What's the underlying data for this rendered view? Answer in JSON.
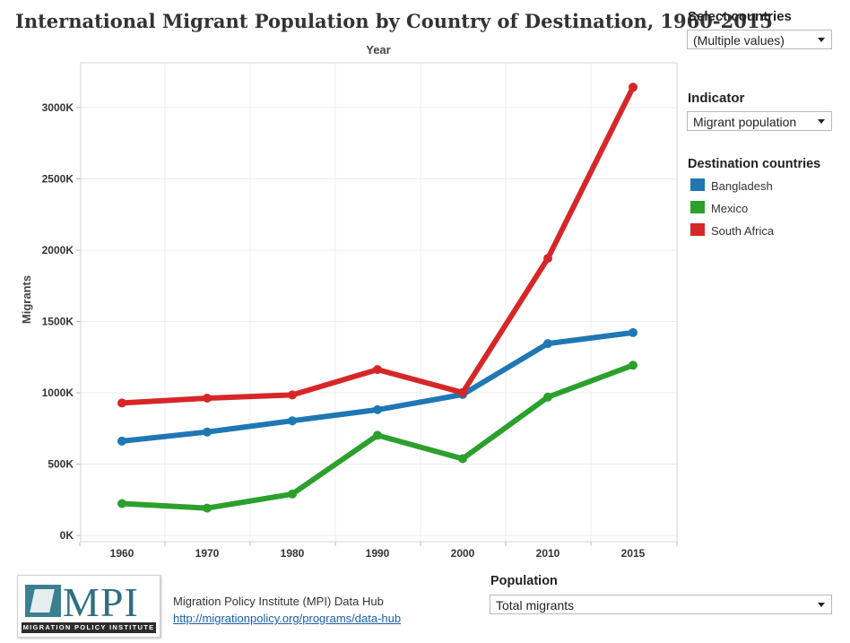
{
  "title": "International Migrant Population by Country of Destination, 1960-2015",
  "controls": {
    "select_countries": {
      "label": "Select countries",
      "value": "(Multiple values)"
    },
    "indicator": {
      "label": "Indicator",
      "value": "Migrant population"
    },
    "population": {
      "label": "Population",
      "value": "Total migrants"
    }
  },
  "legend": {
    "title": "Destination countries",
    "items": [
      {
        "name": "Bangladesh",
        "color": "#1f77b4"
      },
      {
        "name": "Mexico",
        "color": "#2ca02c"
      },
      {
        "name": "South Africa",
        "color": "#d62728"
      }
    ]
  },
  "source": {
    "name": "Migration Policy Institute (MPI) Data Hub",
    "url": "http://migrationpolicy.org/programs/data-hub"
  },
  "logo": {
    "text": "MPI",
    "subtext": "MIGRATION POLICY INSTITUTE"
  },
  "chart_data": {
    "type": "line",
    "title": "International Migrant Population by Country of Destination, 1960-2015",
    "xlabel": "Year",
    "ylabel": "Migrants",
    "x": [
      "1960",
      "1970",
      "1980",
      "1990",
      "2000",
      "2010",
      "2015"
    ],
    "y_ticks": [
      "0K",
      "500K",
      "1000K",
      "1500K",
      "2000K",
      "2500K",
      "3000K"
    ],
    "ylim": [
      0,
      3200000
    ],
    "grid": true,
    "legend_position": "right",
    "series": [
      {
        "name": "Bangladesh",
        "color": "#1f77b4",
        "values": [
          661000,
          725000,
          804000,
          881000,
          988000,
          1345000,
          1422000
        ]
      },
      {
        "name": "Mexico",
        "color": "#2ca02c",
        "values": [
          223000,
          191000,
          290000,
          702000,
          538000,
          970000,
          1193000
        ]
      },
      {
        "name": "South Africa",
        "color": "#d62728",
        "values": [
          928000,
          962000,
          985000,
          1163000,
          1001000,
          1943000,
          3143000
        ]
      }
    ]
  }
}
